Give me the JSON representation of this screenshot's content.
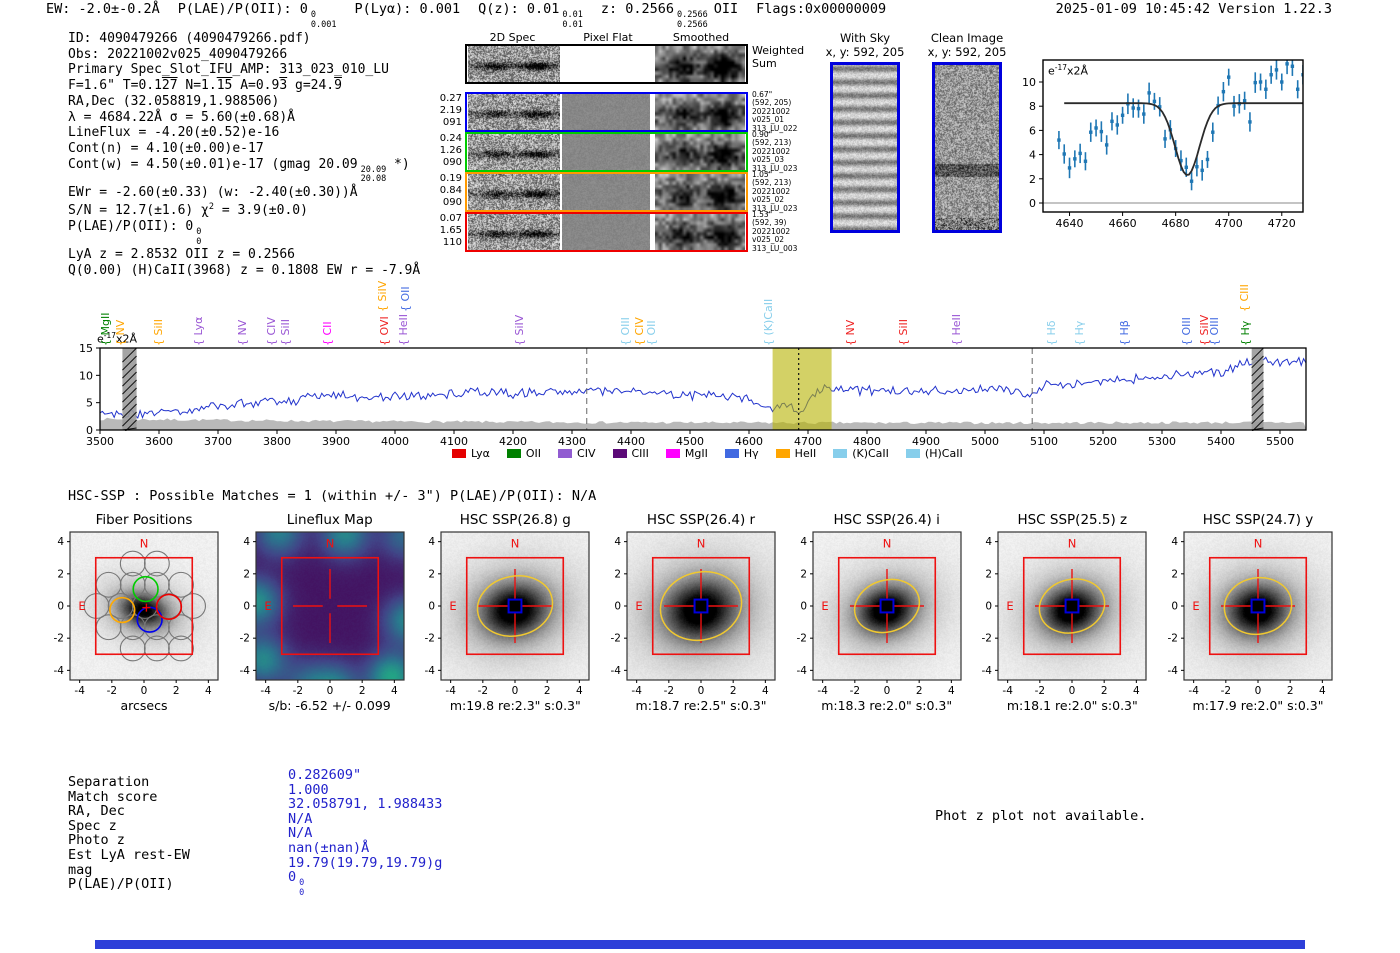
{
  "header": {
    "segments": [
      {
        "pre": "EW: -2.0±-0.2Å"
      },
      {
        "pre": "P(LAE)/P(OII): 0",
        "stack": [
          "0",
          "0.001"
        ]
      },
      {
        "pre": "P(Lyα): 0.001"
      },
      {
        "pre": "Q(z): 0.01",
        "stack": [
          "0.01",
          "0.01"
        ]
      },
      {
        "pre": "z: 0.2566",
        "stack": [
          "0.2566",
          "0.2566"
        ],
        "post": "OII"
      },
      {
        "pre": "Flags:0x00000009"
      }
    ],
    "right": "2025-01-09 10:45:42  Version 1.22.3"
  },
  "info_block": {
    "lines": [
      [
        {
          "t": "ID: 4090479266 (4090479266.pdf)"
        }
      ],
      [
        {
          "t": "Obs: 20221002v025_4090479266"
        }
      ],
      [
        {
          "t": "Primary Spec_Slot_IFU_AMP: 313_023_010_LU"
        }
      ],
      [
        {
          "t": "F=1.6\"  T=0.1"
        },
        {
          "t": "27",
          "ol": 1
        },
        {
          "t": "  N=1."
        },
        {
          "t": "15",
          "ol": 1
        },
        {
          "t": "  A=0.9"
        },
        {
          "t": "3",
          "ol": 1
        },
        {
          "t": "  g=24."
        },
        {
          "t": "9",
          "ol": 1
        }
      ],
      [
        {
          "t": "RA,Dec (32.058819,1.988506)"
        }
      ],
      [
        {
          "t": "λ = 4684.22Å   σ = 5.60(±0.68)Å"
        }
      ],
      [
        {
          "t": "LineFlux = -4.20(±0.52)e-16"
        }
      ],
      [
        {
          "t": "Cont(n) = 4.10(±0.00)e-17"
        }
      ],
      [
        {
          "t": "Cont(w) = 4.50(±0.01)e-17 (gmag 20.09"
        },
        {
          "stack": [
            "20.09",
            "20.08"
          ]
        },
        {
          "t": " *)"
        }
      ],
      [
        {
          "t": "EWr = -2.60(±0.33) (w: -2.40(±0.30))Å"
        }
      ],
      [
        {
          "t": "S/N = 12.7(±1.6)   χ"
        },
        {
          "t": "2",
          "sup": 1
        },
        {
          "t": " = 3.9(±0.0)"
        }
      ],
      [
        {
          "t": "P(LAE)/P(OII): 0"
        },
        {
          "stack": [
            "0",
            "0"
          ]
        }
      ],
      [
        {
          "t": "LyA z = 2.8532  OII z = 0.2566"
        }
      ],
      [
        {
          "t": "Q(0.00) (H)CaII(3968) z = 0.1808  EW r = -7.9Å"
        }
      ]
    ]
  },
  "spec2d": {
    "column_titles": [
      "2D Spec",
      "Pixel Flat",
      "Smoothed"
    ],
    "weighted_label": "Weighted\nSum",
    "rows": [
      {
        "border": "#000000",
        "left": [],
        "right": []
      },
      {
        "border": "#0000ee",
        "left": [
          "0.27",
          "2.19",
          "091"
        ],
        "right": [
          "0.67\"",
          "(592, 205)",
          "20221002",
          "v025_01",
          "313_LU_022"
        ]
      },
      {
        "border": "#00cc00",
        "left": [
          "0.24",
          "1.26",
          "090"
        ],
        "right": [
          "0.90\"",
          "(592, 213)",
          "20221002",
          "v025_03",
          "313_LU_023"
        ]
      },
      {
        "border": "#ff9900",
        "left": [
          "0.19",
          "0.84",
          "090"
        ],
        "right": [
          "1.05\"",
          "(592, 213)",
          "20221002",
          "v025_02",
          "313_LU_023"
        ]
      },
      {
        "border": "#ee0000",
        "left": [
          "0.07",
          "1.65",
          "110"
        ],
        "right": [
          "1.53\"",
          "(592, 39)",
          "20221002",
          "v025_02",
          "313_LU_003"
        ]
      }
    ]
  },
  "sky_panels": {
    "with_sky": {
      "title": "With Sky",
      "coords": "x, y: 592, 205"
    },
    "clean_image": {
      "title": "Clean Image",
      "coords": "x, y: 592, 205"
    }
  },
  "hsc_header": "HSC-SSP : Possible Matches = 1 (within +/- 3\")  P(LAE)/P(OII): N/A",
  "photz_note": "Phot z plot not available.",
  "match_table": {
    "labels": [
      "Separation",
      "Match score",
      "RA, Dec",
      "Spec z",
      "Photo z",
      "Est LyA rest-EW",
      "mag",
      "P(LAE)/P(OII)"
    ],
    "values": [
      {
        "t": "0.282609\""
      },
      {
        "t": "1.000"
      },
      {
        "t": "32.058791, 1.988433"
      },
      {
        "t": "N/A"
      },
      {
        "t": "N/A"
      },
      {
        "t": "nan(±nan)Å"
      },
      {
        "t": "19.79(19.79,19.79)g"
      },
      {
        "t": "0",
        "stack": [
          "0",
          "0"
        ]
      }
    ]
  },
  "footer_bar_color": "#2e3fd9",
  "chart_data": [
    {
      "id": "line_fit_zoom",
      "type": "scatter",
      "title": "",
      "units_label": {
        "prefix": "e",
        "sup": "-17",
        "suffix": "x2Å"
      },
      "xlim": [
        4630,
        4728
      ],
      "ylim": [
        -0.6,
        11.8
      ],
      "xticks": [
        4640,
        4660,
        4680,
        4700,
        4720
      ],
      "yticks": [
        0,
        2,
        4,
        6,
        8,
        10
      ],
      "point_color": "#1f77b4",
      "fit_color": "#2b2b2b",
      "x_start": 4636,
      "x_step": 2,
      "values": [
        5.2,
        4.05,
        2.9,
        3.65,
        4.1,
        3.45,
        5.85,
        6.2,
        5.9,
        4.8,
        6.75,
        6.45,
        7.25,
        8.2,
        7.85,
        7.8,
        7.35,
        9.1,
        8.4,
        7.95,
        5.3,
        6.05,
        4.5,
        3.5,
        2.95,
        1.8,
        3.0,
        2.7,
        3.6,
        5.85,
        8.05,
        9.2,
        10.4,
        8.0,
        8.2,
        8.45,
        6.7,
        9.95,
        10.0,
        9.4,
        10.6,
        11.0,
        10.0,
        11.5,
        11.3,
        9.4,
        10.6,
        11.5,
        11.7
      ],
      "errors": [
        0.75,
        0.8,
        0.85,
        0.7,
        0.8,
        0.75,
        0.8,
        0.7,
        0.85,
        0.8,
        0.75,
        0.8,
        0.7,
        0.85,
        0.8,
        0.75,
        0.8,
        0.85,
        0.7,
        0.8,
        0.75,
        0.8,
        0.7,
        0.85,
        0.8,
        0.75,
        0.8,
        0.85,
        0.7,
        0.8,
        0.75,
        0.8,
        0.7,
        0.85,
        0.8,
        0.75,
        0.8,
        0.85,
        0.7,
        0.8,
        0.75,
        0.8,
        0.7,
        0.85,
        0.8,
        0.75,
        0.8,
        0.85,
        0.7
      ],
      "fit": {
        "continuum": 8.25,
        "amplitude": 5.95,
        "center": 4684.4,
        "sigma": 4.6,
        "x0": 4638,
        "x1": 4731
      }
    },
    {
      "id": "main_spectrum",
      "type": "line",
      "units_label": {
        "prefix": "e",
        "sup": "-17",
        "suffix": "x2Å"
      },
      "xlim": [
        3500,
        5545
      ],
      "ylim": [
        -0.8,
        15.3
      ],
      "xticks": [
        3500,
        3600,
        3700,
        3800,
        3900,
        4000,
        4100,
        4200,
        4300,
        4400,
        4500,
        4600,
        4700,
        4800,
        4900,
        5000,
        5100,
        5200,
        5300,
        5400,
        5500
      ],
      "yticks": [
        0,
        5,
        10,
        15
      ],
      "color": "#2233cc",
      "noise_amp": 1.05,
      "seed": 7,
      "series_anchors": [
        [
          3500,
          3.2
        ],
        [
          3540,
          2.6
        ],
        [
          3560,
          3.0
        ],
        [
          3600,
          3.3
        ],
        [
          3640,
          3.0
        ],
        [
          3680,
          4.6
        ],
        [
          3700,
          4.2
        ],
        [
          3750,
          5.2
        ],
        [
          3800,
          5.0
        ],
        [
          3850,
          5.8
        ],
        [
          3900,
          6.2
        ],
        [
          3950,
          5.9
        ],
        [
          4000,
          6.3
        ],
        [
          4050,
          6.1
        ],
        [
          4100,
          6.6
        ],
        [
          4150,
          7.0
        ],
        [
          4200,
          6.6
        ],
        [
          4250,
          6.9
        ],
        [
          4300,
          7.3
        ],
        [
          4350,
          7.0
        ],
        [
          4400,
          7.2
        ],
        [
          4450,
          6.8
        ],
        [
          4500,
          6.3
        ],
        [
          4550,
          6.2
        ],
        [
          4600,
          5.6
        ],
        [
          4640,
          3.9
        ],
        [
          4660,
          4.6
        ],
        [
          4684,
          3.0
        ],
        [
          4695,
          4.4
        ],
        [
          4710,
          6.3
        ],
        [
          4730,
          7.9
        ],
        [
          4760,
          7.4
        ],
        [
          4800,
          7.2
        ],
        [
          4850,
          7.0
        ],
        [
          4900,
          7.3
        ],
        [
          4950,
          7.0
        ],
        [
          5000,
          7.4
        ],
        [
          5050,
          7.2
        ],
        [
          5080,
          6.7
        ],
        [
          5100,
          8.2
        ],
        [
          5150,
          8.6
        ],
        [
          5200,
          9.0
        ],
        [
          5250,
          9.3
        ],
        [
          5300,
          9.8
        ],
        [
          5350,
          10.2
        ],
        [
          5400,
          10.6
        ],
        [
          5440,
          12.2
        ],
        [
          5460,
          12.8
        ],
        [
          5500,
          12.4
        ],
        [
          5545,
          12.6
        ]
      ],
      "noise_floor_anchors": [
        [
          3500,
          2.0
        ],
        [
          3700,
          1.8
        ],
        [
          3900,
          1.6
        ],
        [
          4300,
          1.4
        ],
        [
          4700,
          1.3
        ],
        [
          5100,
          1.3
        ],
        [
          5545,
          1.4
        ]
      ],
      "shade_bands": [
        {
          "x0": 4640,
          "x1": 4740,
          "color": "#b5b300",
          "opacity": 0.6
        }
      ],
      "hatch_bands": [
        {
          "x0": 3538,
          "x1": 3562
        },
        {
          "x0": 5452,
          "x1": 5472
        }
      ],
      "dashed_vlines": [
        4325,
        5080
      ],
      "dotted_vlines": [
        4684.2
      ],
      "line_labels": [
        {
          "wave": 3520,
          "text": "MgII",
          "color": "#008000",
          "high": false
        },
        {
          "wave": 3546,
          "text": "NV",
          "color": "#ffa500",
          "high": false
        },
        {
          "wave": 3610,
          "text": "SiII",
          "color": "#ffa500",
          "high": false
        },
        {
          "wave": 3678,
          "text": "Lyα",
          "color": "#9955d4",
          "high": false
        },
        {
          "wave": 3752,
          "text": "NV",
          "color": "#9955d4",
          "high": false
        },
        {
          "wave": 3801,
          "text": "CIV",
          "color": "#9955d4",
          "high": false
        },
        {
          "wave": 3825,
          "text": "SiII",
          "color": "#9955d4",
          "high": false
        },
        {
          "wave": 3896,
          "text": "CII",
          "color": "#ff00ff",
          "high": false
        },
        {
          "wave": 3990,
          "text": "SiIV",
          "color": "#ffa500",
          "high": true
        },
        {
          "wave": 3993,
          "text": "OVI",
          "color": "#ee2222",
          "high": false
        },
        {
          "wave": 4025,
          "text": "HeII",
          "color": "#9955d4",
          "high": false
        },
        {
          "wave": 4029,
          "text": "OII",
          "color": "#4169e1",
          "high": true
        },
        {
          "wave": 4222,
          "text": "SiIV",
          "color": "#9955d4",
          "high": false
        },
        {
          "wave": 4401,
          "text": "OIII",
          "color": "#87ceeb",
          "high": false
        },
        {
          "wave": 4426,
          "text": "CIV",
          "color": "#ffa500",
          "high": false
        },
        {
          "wave": 4445,
          "text": "OII",
          "color": "#87ceeb",
          "high": false
        },
        {
          "wave": 4644,
          "text": "(K)CaII",
          "color": "#87ceeb",
          "high": false
        },
        {
          "wave": 4783,
          "text": "NV",
          "color": "#ee2222",
          "high": false
        },
        {
          "wave": 4872,
          "text": "SiII",
          "color": "#ee2222",
          "high": false
        },
        {
          "wave": 4962,
          "text": "HeII",
          "color": "#9955d4",
          "high": false
        },
        {
          "wave": 5123,
          "text": "Hδ",
          "color": "#87ceeb",
          "high": false
        },
        {
          "wave": 5171,
          "text": "Hγ",
          "color": "#87ceeb",
          "high": false
        },
        {
          "wave": 5247,
          "text": "Hβ",
          "color": "#4169e1",
          "high": false
        },
        {
          "wave": 5353,
          "text": "OIII",
          "color": "#4169e1",
          "high": false
        },
        {
          "wave": 5383,
          "text": "SiIV",
          "color": "#ee2222",
          "high": false
        },
        {
          "wave": 5400,
          "text": "OIII",
          "color": "#4169e1",
          "high": false
        },
        {
          "wave": 5450,
          "text": "CIII",
          "color": "#ffa500",
          "high": true
        },
        {
          "wave": 5452,
          "text": "Hγ",
          "color": "#008000",
          "high": false
        }
      ],
      "legend": [
        {
          "label": "Lyα",
          "color": "#e50000"
        },
        {
          "label": "OII",
          "color": "#008000"
        },
        {
          "label": "CIV",
          "color": "#915cd1"
        },
        {
          "label": "CIII",
          "color": "#5c0a78"
        },
        {
          "label": "MgII",
          "color": "#ff00ff"
        },
        {
          "label": "Hγ",
          "color": "#4169e1"
        },
        {
          "label": "HeII",
          "color": "#ffa500"
        },
        {
          "label": "(K)CaII",
          "color": "#87ceeb"
        },
        {
          "label": "(H)CaII",
          "color": "#87ceeb"
        }
      ]
    },
    {
      "id": "cutout_row",
      "type": "heatmap",
      "ticks": [
        -4,
        -2,
        0,
        2,
        4
      ],
      "compass": {
        "north": "N",
        "east": "E"
      },
      "items": [
        {
          "kind": "fiber",
          "title": "Fiber Positions",
          "xlabel": "arcsecs",
          "fibers": [
            {
              "x": 0.1,
              "y": 1.05,
              "color": "#00cc00"
            },
            {
              "x": -1.35,
              "y": -0.25,
              "color": "#ffaa00"
            },
            {
              "x": 0.35,
              "y": -0.85,
              "color": "#0000ee"
            },
            {
              "x": 1.55,
              "y": -0.05,
              "color": "#ee0000"
            }
          ]
        },
        {
          "kind": "lineflux",
          "title": "Lineflux Map",
          "xlabel": "s/b: -6.52 +/- 0.099"
        },
        {
          "kind": "cutout",
          "title": "HSC SSP(26.8) g",
          "xlabel": "m:19.8  re:2.3\"  s:0.3\"",
          "ellipse": {
            "rx": 2.35,
            "ry": 1.85,
            "rot": -12
          }
        },
        {
          "kind": "cutout",
          "title": "HSC SSP(26.4) r",
          "xlabel": "m:18.7  re:2.5\"  s:0.3\"",
          "ellipse": {
            "rx": 2.55,
            "ry": 2.1,
            "rot": -15
          }
        },
        {
          "kind": "cutout",
          "title": "HSC SSP(26.4) i",
          "xlabel": "m:18.3  re:2.0\"  s:0.3\"",
          "ellipse": {
            "rx": 2.05,
            "ry": 1.6,
            "rot": -18
          }
        },
        {
          "kind": "cutout",
          "title": "HSC SSP(25.5) z",
          "xlabel": "m:18.1  re:2.0\"  s:0.3\"",
          "ellipse": {
            "rx": 2.05,
            "ry": 1.65,
            "rot": -15
          }
        },
        {
          "kind": "cutout",
          "title": "HSC SSP(24.7) y",
          "xlabel": "m:17.9  re:2.0\"  s:0.3\"",
          "ellipse": {
            "rx": 2.1,
            "ry": 1.75,
            "rot": -10
          }
        }
      ]
    }
  ]
}
